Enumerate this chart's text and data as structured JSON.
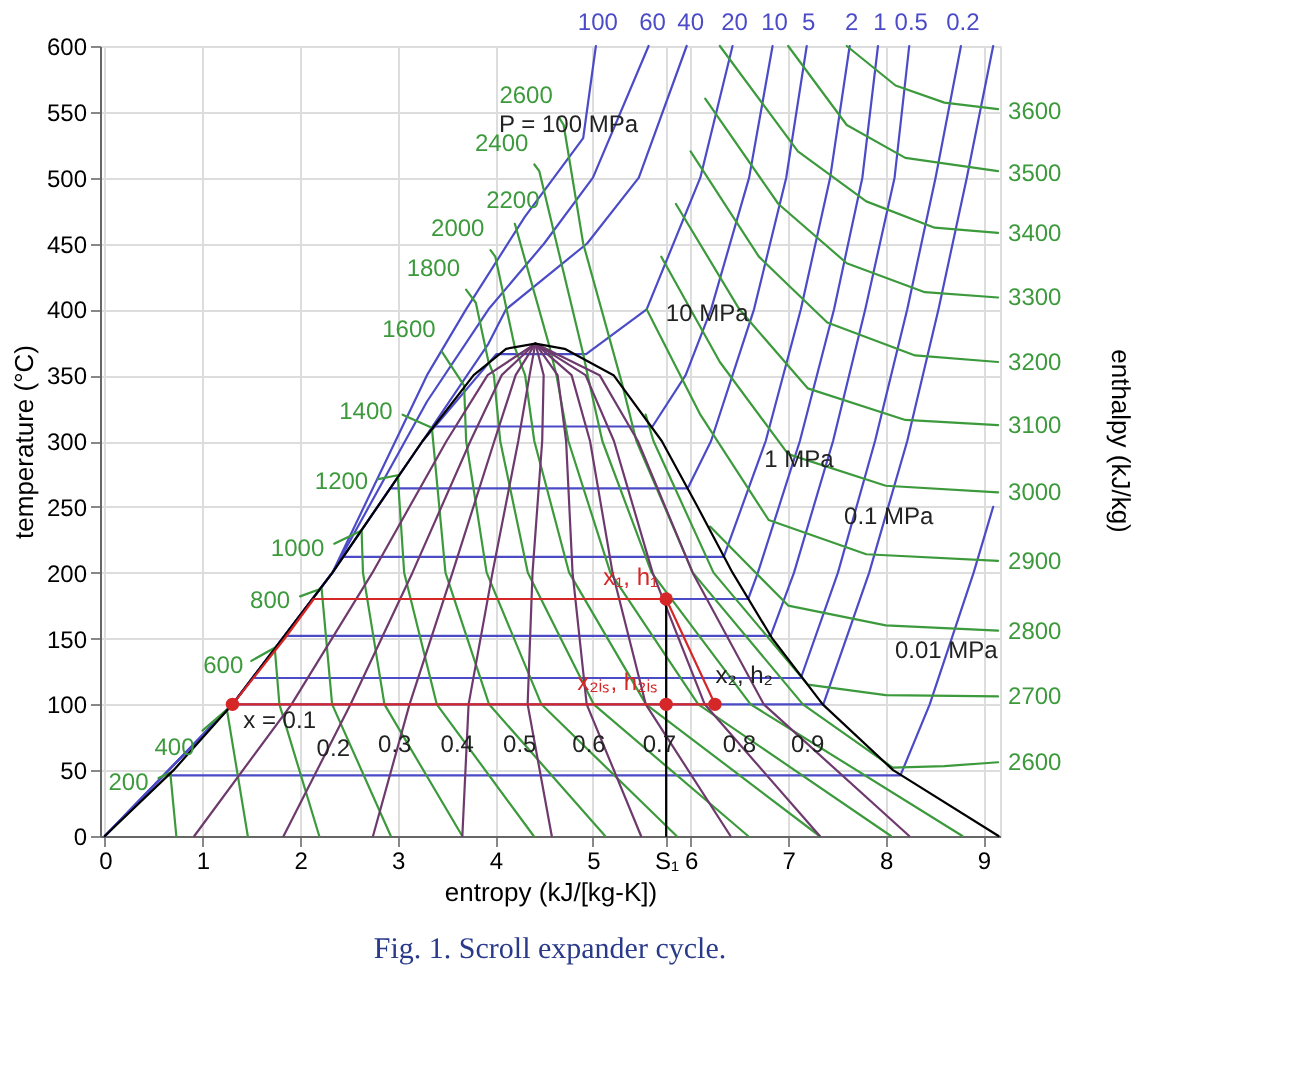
{
  "chart_data": {
    "type": "line",
    "xlabel": "entropy (kJ/[kg-K])",
    "ylabel": "temperature (°C)",
    "y2label": "enthalpy (kJ/kg)",
    "xlim": [
      -0.05,
      9.17
    ],
    "ylim": [
      0,
      600
    ],
    "xticks": [
      0,
      1,
      2,
      3,
      4,
      5,
      {
        "value": 5.75,
        "label": "S₁"
      },
      6,
      7,
      8,
      9
    ],
    "yticks": [
      0,
      50,
      100,
      150,
      200,
      250,
      300,
      350,
      400,
      450,
      500,
      550,
      600
    ],
    "grid": true,
    "series": [
      {
        "name": "100",
        "color": "#4b4bc8",
        "x": [
          0,
          1.307,
          2.331,
          3.3,
          3.7,
          4.3,
          4.9,
          5.03
        ],
        "values": [
          0,
          100,
          200,
          350,
          400,
          470,
          530,
          600
        ]
      },
      {
        "name": "60",
        "color": "#4b4bc8",
        "x": [
          0,
          1.307,
          2.331,
          3.3,
          3.93,
          4.5,
          5.0,
          5.57
        ],
        "values": [
          0,
          100,
          200,
          330,
          400,
          450,
          500,
          600
        ]
      },
      {
        "name": "40",
        "color": "#4b4bc8",
        "x": [
          0,
          1.307,
          2.331,
          3.255,
          3.93,
          4.11,
          4.94,
          5.47,
          5.96
        ],
        "values": [
          0,
          100,
          200,
          300,
          374,
          400,
          450,
          500,
          600
        ]
      },
      {
        "name": "20",
        "color": "#4b4bc8",
        "x": [
          0,
          1.307,
          2.331,
          3.255,
          4.01,
          4.93,
          5.55,
          6.1,
          6.43
        ],
        "values": [
          0,
          100,
          200,
          300,
          366,
          366,
          400,
          500,
          600
        ]
      },
      {
        "name": "10",
        "color": "#4b4bc8",
        "x": [
          3.36,
          5.61,
          5.95,
          6.21,
          6.6,
          6.84
        ],
        "values": [
          311,
          311,
          350,
          400,
          500,
          600
        ]
      },
      {
        "name": "5",
        "color": "#4b4bc8",
        "x": [
          2.92,
          5.97,
          6.21,
          6.65,
          6.98,
          7.19
        ],
        "values": [
          264,
          264,
          300,
          400,
          500,
          600
        ]
      },
      {
        "name": "2",
        "color": "#4b4bc8",
        "x": [
          2.45,
          6.34,
          6.77,
          7.13,
          7.43,
          7.63
        ],
        "values": [
          212,
          212,
          300,
          400,
          500,
          600
        ]
      },
      {
        "name": "1",
        "color": "#4b4bc8",
        "x": [
          2.14,
          6.59,
          6.69,
          7.12,
          7.47,
          7.76,
          7.92
        ],
        "values": [
          180,
          180,
          200,
          300,
          400,
          500,
          600
        ]
      },
      {
        "name": "0.5",
        "color": "#4b4bc8",
        "x": [
          1.86,
          6.82,
          7.06,
          7.46,
          7.79,
          8.09,
          8.24
        ],
        "values": [
          152,
          152,
          200,
          300,
          400,
          500,
          600
        ]
      },
      {
        "name": "0.2",
        "color": "#4b4bc8",
        "x": [
          1.53,
          7.13,
          7.51,
          7.89,
          8.22,
          8.51,
          8.77
        ],
        "values": [
          120,
          120,
          200,
          300,
          400,
          500,
          600
        ]
      },
      {
        "color": "#4b4bc8",
        "x": [
          1.303,
          7.36,
          7.83,
          8.22,
          8.54,
          8.83,
          9.1
        ],
        "values": [
          100,
          100,
          200,
          300,
          400,
          500,
          600
        ]
      },
      {
        "color": "#4b4bc8",
        "x": [
          0.649,
          8.15,
          8.45,
          8.9,
          9.1
        ],
        "values": [
          46,
          46,
          100,
          200,
          250
        ]
      },
      {
        "name": "200",
        "color": "#3c9a3c",
        "x": [
          0.732,
          0.67,
          0.55
        ],
        "values": [
          0,
          48,
          44
        ]
      },
      {
        "name": "400",
        "color": "#3c9a3c",
        "x": [
          1.464,
          1.25,
          1.0
        ],
        "values": [
          0,
          96,
          80
        ]
      },
      {
        "name": "600",
        "color": "#3c9a3c",
        "x": [
          2.196,
          1.788,
          1.74,
          1.5
        ],
        "values": [
          0,
          100,
          143,
          133
        ]
      },
      {
        "name": "800",
        "color": "#3c9a3c",
        "x": [
          2.929,
          2.328,
          2.22,
          2.0
        ],
        "values": [
          0,
          100,
          188,
          182
        ]
      },
      {
        "name": "1000",
        "color": "#3c9a3c",
        "x": [
          3.661,
          2.864,
          2.644,
          2.63,
          2.35
        ],
        "values": [
          0,
          100,
          200,
          232,
          222
        ]
      },
      {
        "name": "1200",
        "color": "#3c9a3c",
        "x": [
          4.393,
          3.4,
          3.066,
          3.0,
          2.8
        ],
        "values": [
          0,
          100,
          200,
          274,
          271
        ]
      },
      {
        "name": "1400",
        "color": "#3c9a3c",
        "x": [
          5.125,
          3.936,
          3.489,
          3.35,
          3.05
        ],
        "values": [
          0,
          100,
          200,
          310,
          320
        ]
      },
      {
        "name": "1600",
        "color": "#3c9a3c",
        "x": [
          5.857,
          4.472,
          3.911,
          3.701,
          3.68,
          3.45
        ],
        "values": [
          0,
          100,
          200,
          300,
          342,
          368
        ]
      },
      {
        "name": "1800",
        "color": "#3c9a3c",
        "x": [
          6.589,
          5.008,
          4.333,
          4.05,
          3.985,
          3.93,
          3.8,
          3.7
        ],
        "values": [
          0,
          100,
          200,
          300,
          350,
          360,
          405,
          415
        ]
      },
      {
        "name": "2000",
        "color": "#3c9a3c",
        "x": [
          7.321,
          5.544,
          4.756,
          4.399,
          4.305,
          4.2,
          4.0,
          3.95
        ],
        "values": [
          0,
          100,
          200,
          300,
          350,
          371,
          440,
          445
        ]
      },
      {
        "name": "2200",
        "color": "#3c9a3c",
        "x": [
          8.053,
          6.079,
          5.178,
          4.748,
          4.626,
          4.55,
          4.2
        ],
        "values": [
          0,
          100,
          200,
          300,
          350,
          373,
          465
        ]
      },
      {
        "name": "2400",
        "color": "#3c9a3c",
        "x": [
          8.785,
          6.615,
          5.601,
          5.096,
          4.946,
          4.9,
          4.45,
          4.4
        ],
        "values": [
          0,
          100,
          200,
          300,
          350,
          366,
          505,
          510
        ]
      },
      {
        "name": "2600",
        "color": "#3c9a3c",
        "x": [
          8.07,
          7.151,
          6.023,
          5.445,
          5.3,
          4.9,
          4.7,
          4.65
        ],
        "values": [
          52,
          100,
          200,
          300,
          343,
          450,
          540,
          546
        ]
      },
      {
        "name": "2600",
        "color": "#3c9a3c",
        "x": [
          8.07,
          8.6,
          9.15
        ],
        "values": [
          52,
          53,
          56
        ]
      },
      {
        "name": "2700",
        "color": "#3c9a3c",
        "x": [
          5.54,
          5.62,
          6.235,
          7.2,
          8.0,
          9.15
        ],
        "values": [
          320,
          300,
          200,
          115,
          107,
          106
        ]
      },
      {
        "name": "2800",
        "color": "#3c9a3c",
        "x": [
          6.2,
          7.0,
          8.0,
          9.15
        ],
        "values": [
          235,
          175,
          160,
          156
        ]
      },
      {
        "name": "2900",
        "color": "#3c9a3c",
        "x": [
          5.55,
          6.1,
          6.8,
          7.8,
          9.15
        ],
        "values": [
          400,
          320,
          240,
          214,
          209
        ]
      },
      {
        "name": "3000",
        "color": "#3c9a3c",
        "x": [
          5.7,
          6.3,
          7.0,
          8.0,
          9.15
        ],
        "values": [
          440,
          360,
          290,
          266,
          261
        ]
      },
      {
        "name": "3100",
        "color": "#3c9a3c",
        "x": [
          5.85,
          6.5,
          7.2,
          8.2,
          9.15
        ],
        "values": [
          480,
          400,
          340,
          316,
          312
        ]
      },
      {
        "name": "3200",
        "color": "#3c9a3c",
        "x": [
          6.0,
          6.7,
          7.4,
          8.3,
          9.15
        ],
        "values": [
          520,
          440,
          390,
          365,
          360
        ]
      },
      {
        "name": "3300",
        "color": "#3c9a3c",
        "x": [
          6.15,
          6.9,
          7.6,
          8.4,
          9.15
        ],
        "values": [
          560,
          480,
          435,
          413,
          409
        ]
      },
      {
        "name": "3400",
        "color": "#3c9a3c",
        "x": [
          6.3,
          7.1,
          7.8,
          8.5,
          9.15
        ],
        "values": [
          600,
          520,
          482,
          462,
          458
        ]
      },
      {
        "name": "3500",
        "color": "#3c9a3c",
        "x": [
          7.0,
          7.6,
          8.2,
          9.15
        ],
        "values": [
          600,
          540,
          515,
          505
        ]
      },
      {
        "name": "3600",
        "color": "#3c9a3c",
        "x": [
          7.6,
          8.1,
          8.6,
          9.15
        ],
        "values": [
          600,
          570,
          557,
          552
        ]
      },
      {
        "color": "#6e3a6e",
        "x": [
          0.916,
          1.912,
          2.741,
          3.5,
          3.921,
          4.41
        ],
        "values": [
          0,
          100,
          200,
          300,
          350,
          374
        ]
      },
      {
        "color": "#6e3a6e",
        "x": [
          1.831,
          2.517,
          3.151,
          3.745,
          4.065,
          4.41
        ],
        "values": [
          0,
          100,
          200,
          300,
          350,
          374
        ]
      },
      {
        "color": "#6e3a6e",
        "x": [
          2.747,
          3.121,
          3.561,
          3.99,
          4.208,
          4.41
        ],
        "values": [
          0,
          100,
          200,
          300,
          350,
          374
        ]
      },
      {
        "color": "#6e3a6e",
        "x": [
          3.662,
          3.726,
          3.971,
          4.235,
          4.351,
          4.41
        ],
        "values": [
          0,
          100,
          200,
          300,
          350,
          374
        ]
      },
      {
        "color": "#6e3a6e",
        "x": [
          4.578,
          4.331,
          4.381,
          4.48,
          4.495,
          4.41
        ],
        "values": [
          0,
          100,
          200,
          300,
          350,
          374
        ]
      },
      {
        "color": "#6e3a6e",
        "x": [
          5.493,
          4.936,
          4.791,
          4.725,
          4.638,
          4.41
        ],
        "values": [
          0,
          100,
          200,
          300,
          350,
          374
        ]
      },
      {
        "color": "#6e3a6e",
        "x": [
          6.409,
          5.541,
          5.201,
          4.97,
          4.781,
          4.41
        ],
        "values": [
          0,
          100,
          200,
          300,
          350,
          374
        ]
      },
      {
        "color": "#6e3a6e",
        "x": [
          7.324,
          6.145,
          5.611,
          5.215,
          4.924,
          4.41
        ],
        "values": [
          0,
          100,
          200,
          300,
          350,
          374
        ]
      },
      {
        "color": "#6e3a6e",
        "x": [
          8.24,
          6.75,
          6.021,
          5.46,
          5.068,
          4.41
        ],
        "values": [
          0,
          100,
          200,
          300,
          350,
          374
        ]
      },
      {
        "color": "#000000",
        "x": [
          0,
          0.704,
          1.307,
          2.331,
          2.793,
          3.255,
          3.778,
          4.11,
          4.41,
          4.71,
          5.211,
          5.705,
          6.072,
          6.43,
          6.837,
          7.354,
          8.075,
          9.155
        ],
        "values": [
          0,
          50,
          100,
          200,
          250,
          300,
          350,
          370,
          374,
          370,
          350,
          300,
          250,
          200,
          150,
          100,
          50,
          0
        ]
      },
      {
        "color": "#000000",
        "x": [
          5.75,
          5.75
        ],
        "values": [
          180,
          0
        ]
      },
      {
        "color": "#d62728",
        "x": [
          1.307,
          1.842,
          2.14,
          5.75,
          6.25
        ],
        "values": [
          100,
          150,
          180,
          180,
          100
        ]
      },
      {
        "color": "#d62728",
        "x": [
          1.307,
          6.25
        ],
        "values": [
          100,
          100
        ]
      },
      {
        "type": "scatter",
        "marker": "circle",
        "color": "#d62728",
        "x": [
          1.307,
          6.25
        ],
        "values": [
          100,
          100
        ]
      },
      {
        "type": "scatter",
        "marker": "circle",
        "name": "x₁, h₁",
        "color": "#d62728",
        "x": [
          5.75
        ],
        "values": [
          180
        ]
      },
      {
        "type": "scatter",
        "marker": "circle",
        "name": "x₂ᵢₛ, h₂ᵢₛ",
        "color": "#d62728",
        "x": [
          5.75
        ],
        "values": [
          100
        ]
      }
    ],
    "annotations": [
      {
        "text": "P = 100 MPa",
        "x": 4.75,
        "y": 541
      },
      {
        "text": "10 MPa",
        "x": 6.17,
        "y": 397
      },
      {
        "text": "1 MPa",
        "x": 7.11,
        "y": 286
      },
      {
        "text": "0.1 MPa",
        "x": 8.03,
        "y": 243
      },
      {
        "text": "0.01 MPa",
        "x": 8.62,
        "y": 141
      },
      {
        "text": "x = 0.1",
        "x": 1.79,
        "y": 88
      },
      {
        "text": "0.2",
        "x": 2.34,
        "y": 67
      },
      {
        "text": "0.3",
        "x": 2.97,
        "y": 70
      },
      {
        "text": "0.4",
        "x": 3.61,
        "y": 70
      },
      {
        "text": "0.5",
        "x": 4.25,
        "y": 70
      },
      {
        "text": "0.6",
        "x": 4.96,
        "y": 70
      },
      {
        "text": "0.7",
        "x": 5.68,
        "y": 70
      },
      {
        "text": "0.8",
        "x": 6.5,
        "y": 70
      },
      {
        "text": "0.9",
        "x": 7.2,
        "y": 70
      },
      {
        "text": "x₂, h₂",
        "x": 6.55,
        "y": 122
      },
      "Fig. 1. Scroll expander cycle."
    ]
  }
}
